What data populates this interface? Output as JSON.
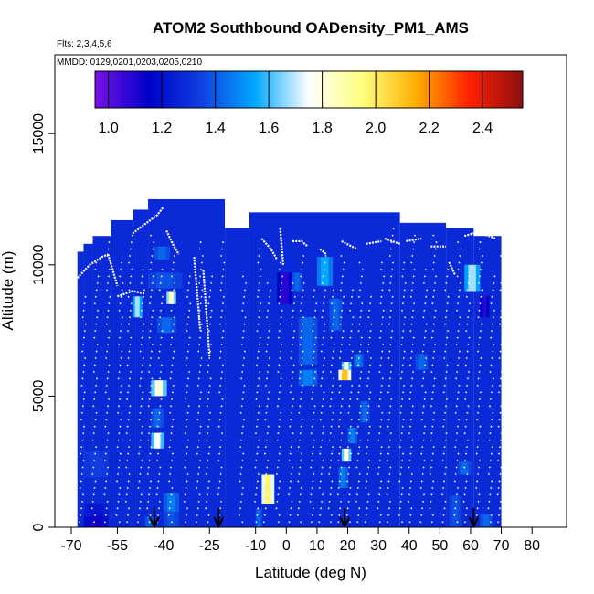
{
  "chart_data": {
    "type": "heatmap",
    "title": "ATOM2 Southbound OADensity_PM1_AMS",
    "subtitle_flights": "Flts: 2,3,4,5,6",
    "subtitle_dates": "MMDD: 0129,0201,0203,0205,0210",
    "xlabel": "Latitude (deg N)",
    "ylabel": "Altitude (m)",
    "xlim": [
      -70,
      85
    ],
    "ylim": [
      0,
      18000
    ],
    "x_ticks": [
      -70,
      -55,
      -40,
      -25,
      -10,
      0,
      10,
      20,
      30,
      40,
      50,
      60,
      70,
      80
    ],
    "x_tick_labels": [
      "-70",
      "-55",
      "-40",
      "-25",
      "-10",
      "0",
      "10",
      "20",
      "30",
      "40",
      "50",
      "60",
      "70",
      "80"
    ],
    "y_ticks": [
      0,
      5000,
      10000,
      15000
    ],
    "y_tick_labels": [
      "0",
      "5000",
      "10000",
      "15000"
    ],
    "colorbar": {
      "range": [
        0.95,
        2.55
      ],
      "ticks": [
        1.0,
        1.2,
        1.4,
        1.6,
        1.8,
        2.0,
        2.2,
        2.4
      ],
      "tick_labels": [
        "1.0",
        "1.2",
        "1.4",
        "1.6",
        "1.8",
        "2.0",
        "2.2",
        "2.4"
      ],
      "colors": [
        "#7a10e6",
        "#0000c8",
        "#1040e0",
        "#00a8ff",
        "#ffffff",
        "#ffff80",
        "#ffb000",
        "#ff2000",
        "#8b1010"
      ]
    },
    "background_value": 1.28,
    "coverage": [
      {
        "lat": [
          -68,
          -66
        ],
        "alt": [
          0,
          10500
        ]
      },
      {
        "lat": [
          -66,
          -63
        ],
        "alt": [
          0,
          10800
        ]
      },
      {
        "lat": [
          -63,
          -57
        ],
        "alt": [
          0,
          11100
        ]
      },
      {
        "lat": [
          -57,
          -50
        ],
        "alt": [
          0,
          11700
        ]
      },
      {
        "lat": [
          -50,
          -45
        ],
        "alt": [
          0,
          12100
        ]
      },
      {
        "lat": [
          -45,
          -20
        ],
        "alt": [
          0,
          12500
        ]
      },
      {
        "lat": [
          -20,
          -12
        ],
        "alt": [
          0,
          11400
        ]
      },
      {
        "lat": [
          -12,
          37
        ],
        "alt": [
          0,
          12000
        ]
      },
      {
        "lat": [
          37,
          52
        ],
        "alt": [
          0,
          11600
        ]
      },
      {
        "lat": [
          52,
          61
        ],
        "alt": [
          0,
          11400
        ]
      },
      {
        "lat": [
          61,
          70
        ],
        "alt": [
          0,
          11100
        ]
      }
    ],
    "cells": [
      {
        "lat": [
          -66,
          -58
        ],
        "alt": [
          0,
          400
        ],
        "v": 1.1
      },
      {
        "lat": [
          -66,
          -58
        ],
        "alt": [
          400,
          900
        ],
        "v": 1.2
      },
      {
        "lat": [
          -66,
          -58
        ],
        "alt": [
          1900,
          2900
        ],
        "v": 1.35
      },
      {
        "lat": [
          -50,
          -47
        ],
        "alt": [
          8000,
          8800
        ],
        "v": 1.75
      },
      {
        "lat": [
          -43,
          -38
        ],
        "alt": [
          10200,
          10700
        ],
        "v": 1.45
      },
      {
        "lat": [
          -45,
          -34
        ],
        "alt": [
          9100,
          9700
        ],
        "v": 1.4
      },
      {
        "lat": [
          -39,
          -36
        ],
        "alt": [
          8500,
          9000
        ],
        "v": 1.95
      },
      {
        "lat": [
          -42,
          -36
        ],
        "alt": [
          7400,
          8000
        ],
        "v": 1.45
      },
      {
        "lat": [
          -44,
          -39
        ],
        "alt": [
          5000,
          5600
        ],
        "v": 1.9
      },
      {
        "lat": [
          -44,
          -40
        ],
        "alt": [
          3000,
          3600
        ],
        "v": 1.85
      },
      {
        "lat": [
          -44,
          -40
        ],
        "alt": [
          3800,
          4500
        ],
        "v": 1.45
      },
      {
        "lat": [
          -40,
          -35
        ],
        "alt": [
          600,
          1300
        ],
        "v": 1.5
      },
      {
        "lat": [
          -40,
          -35
        ],
        "alt": [
          0,
          600
        ],
        "v": 1.4
      },
      {
        "lat": [
          -46,
          -43
        ],
        "alt": [
          0,
          400
        ],
        "v": 1.45
      },
      {
        "lat": [
          -8,
          -4
        ],
        "alt": [
          900,
          2000
        ],
        "v": 2.1
      },
      {
        "lat": [
          -10,
          -8
        ],
        "alt": [
          0,
          700
        ],
        "v": 1.45
      },
      {
        "lat": [
          -3,
          2
        ],
        "alt": [
          8500,
          9700
        ],
        "v": 1.05
      },
      {
        "lat": [
          2,
          5
        ],
        "alt": [
          9000,
          9700
        ],
        "v": 1.45
      },
      {
        "lat": [
          4,
          10
        ],
        "alt": [
          6200,
          8000
        ],
        "v": 1.45
      },
      {
        "lat": [
          4,
          10
        ],
        "alt": [
          5400,
          6000
        ],
        "v": 1.5
      },
      {
        "lat": [
          10,
          15
        ],
        "alt": [
          9200,
          10300
        ],
        "v": 1.6
      },
      {
        "lat": [
          14,
          18
        ],
        "alt": [
          7500,
          8700
        ],
        "v": 1.45
      },
      {
        "lat": [
          17,
          21
        ],
        "alt": [
          5600,
          6000
        ],
        "v": 2.25
      },
      {
        "lat": [
          18,
          21
        ],
        "alt": [
          6000,
          6300
        ],
        "v": 1.85
      },
      {
        "lat": [
          18,
          21
        ],
        "alt": [
          2500,
          3000
        ],
        "v": 1.9
      },
      {
        "lat": [
          17,
          20
        ],
        "alt": [
          1500,
          2300
        ],
        "v": 1.5
      },
      {
        "lat": [
          20,
          23
        ],
        "alt": [
          3200,
          3800
        ],
        "v": 1.5
      },
      {
        "lat": [
          22,
          25
        ],
        "alt": [
          6100,
          6600
        ],
        "v": 1.5
      },
      {
        "lat": [
          24,
          27
        ],
        "alt": [
          4000,
          4800
        ],
        "v": 1.45
      },
      {
        "lat": [
          42,
          46
        ],
        "alt": [
          6000,
          6600
        ],
        "v": 1.45
      },
      {
        "lat": [
          53,
          57
        ],
        "alt": [
          0,
          1200
        ],
        "v": 1.4
      },
      {
        "lat": [
          58,
          63
        ],
        "alt": [
          9000,
          10000
        ],
        "v": 1.75
      },
      {
        "lat": [
          56,
          60
        ],
        "alt": [
          2000,
          2500
        ],
        "v": 1.45
      },
      {
        "lat": [
          63,
          66
        ],
        "alt": [
          8000,
          8800
        ],
        "v": 1.05
      },
      {
        "lat": [
          63,
          67
        ],
        "alt": [
          0,
          500
        ],
        "v": 1.45
      }
    ],
    "flight_tracks": [
      {
        "points": [
          [
            -68,
            9500
          ],
          [
            -64,
            10000
          ],
          [
            -60,
            10300
          ],
          [
            -58,
            10400
          ]
        ]
      },
      {
        "points": [
          [
            -58,
            10400
          ],
          [
            -55,
            9200
          ]
        ]
      },
      {
        "points": [
          [
            -55,
            8800
          ],
          [
            -50,
            9000
          ],
          [
            -46,
            8900
          ]
        ]
      },
      {
        "points": [
          [
            -50,
            11200
          ],
          [
            -42,
            11900
          ],
          [
            -40,
            12200
          ]
        ]
      },
      {
        "points": [
          [
            -39,
            11300
          ],
          [
            -37,
            10800
          ],
          [
            -35,
            10400
          ]
        ]
      },
      {
        "points": [
          [
            -30,
            10300
          ],
          [
            -28,
            7500
          ]
        ]
      },
      {
        "points": [
          [
            -27,
            9800
          ],
          [
            -25,
            6500
          ]
        ]
      },
      {
        "points": [
          [
            -18,
            11900
          ],
          [
            -13,
            11800
          ]
        ]
      },
      {
        "points": [
          [
            -8,
            11000
          ],
          [
            -5,
            10600
          ],
          [
            -3,
            10200
          ]
        ]
      },
      {
        "points": [
          [
            -2,
            11400
          ],
          [
            -1,
            10000
          ]
        ]
      },
      {
        "points": [
          [
            2,
            10900
          ],
          [
            5,
            10900
          ],
          [
            7,
            10700
          ]
        ]
      },
      {
        "points": [
          [
            11,
            10600
          ],
          [
            13,
            10400
          ]
        ]
      },
      {
        "points": [
          [
            18,
            10900
          ],
          [
            23,
            10600
          ]
        ]
      },
      {
        "points": [
          [
            26,
            10800
          ],
          [
            31,
            10900
          ]
        ]
      },
      {
        "points": [
          [
            32,
            11000
          ],
          [
            37,
            10800
          ]
        ]
      },
      {
        "points": [
          [
            39,
            10900
          ],
          [
            44,
            11000
          ]
        ]
      },
      {
        "points": [
          [
            47,
            10700
          ],
          [
            52,
            10700
          ]
        ]
      },
      {
        "points": [
          [
            53,
            10100
          ],
          [
            55,
            9600
          ]
        ]
      },
      {
        "points": [
          [
            58,
            11100
          ],
          [
            61,
            11200
          ]
        ]
      },
      {
        "points": [
          [
            63,
            11200
          ],
          [
            66,
            11100
          ],
          [
            68,
            11000
          ]
        ]
      }
    ],
    "profiles": [
      -67,
      -63,
      -59,
      -55,
      -52,
      -48,
      -45,
      -42,
      -38,
      -33,
      -29,
      -26,
      -22,
      -15,
      -10,
      -7,
      -3,
      1,
      4,
      8,
      11,
      14,
      17,
      20,
      23,
      26,
      30,
      33,
      37,
      40,
      44,
      47,
      51,
      55,
      58,
      62,
      66,
      69
    ],
    "arrows_lat": [
      -43,
      -22,
      19,
      61
    ]
  }
}
